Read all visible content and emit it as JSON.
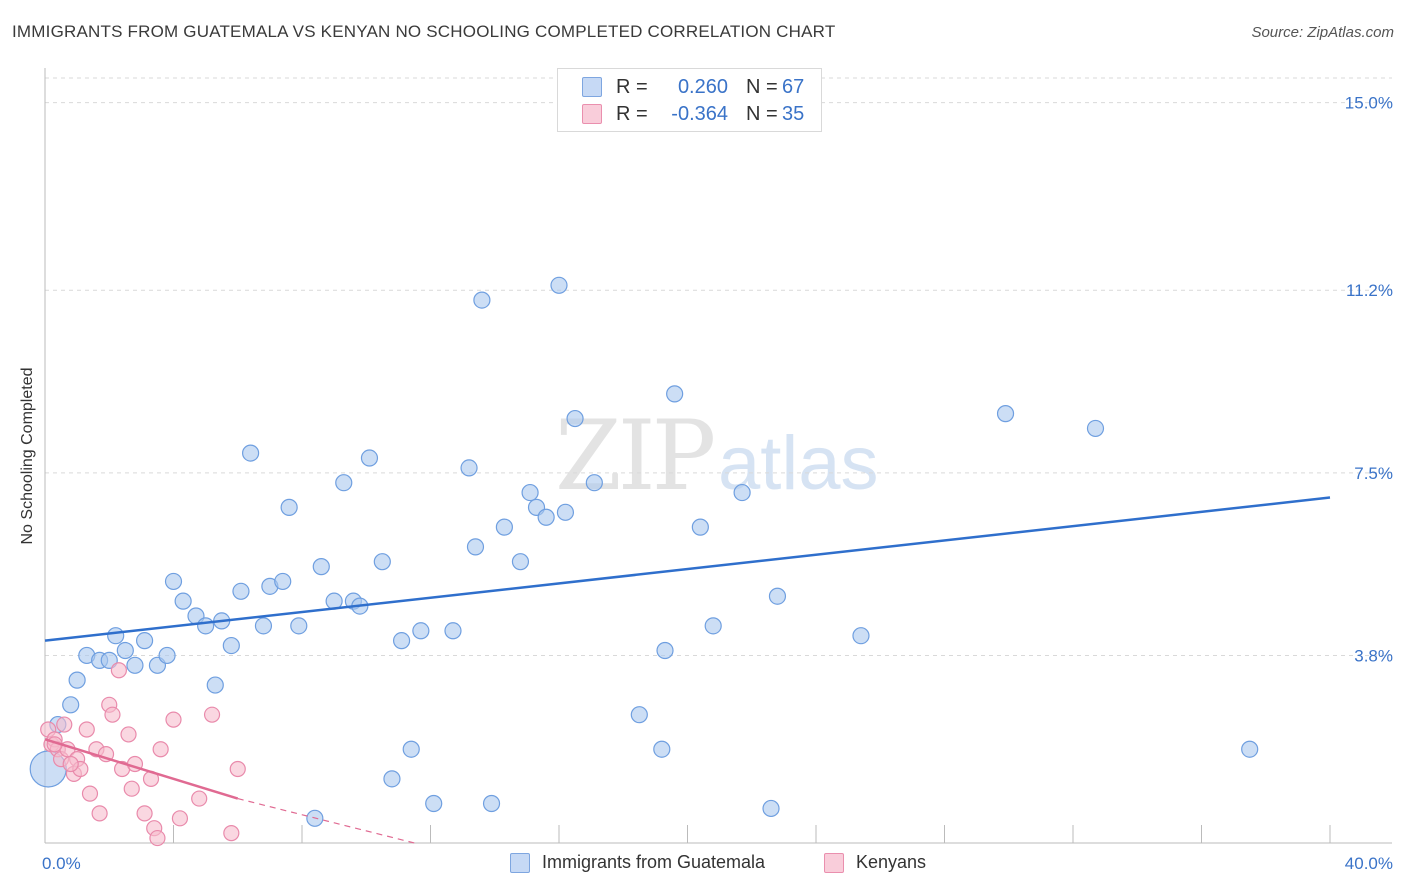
{
  "header": {
    "title": "IMMIGRANTS FROM GUATEMALA VS KENYAN NO SCHOOLING COMPLETED CORRELATION CHART",
    "source": "Source: ZipAtlas.com"
  },
  "watermark": {
    "zip": "ZIP",
    "atlas": "atlas"
  },
  "legend": {
    "r_label": "R =",
    "n_label": "N =",
    "rows": [
      {
        "name": "Immigrants from Guatemala",
        "r": "0.260",
        "n": "67",
        "color": "#7ea6e0"
      },
      {
        "name": "Kenyans",
        "r": "-0.364",
        "n": "35",
        "color": "#ea8fae"
      }
    ]
  },
  "colors": {
    "blue_fill": "#aac8ef",
    "blue_stroke": "#6f9fe0",
    "blue_line": "#2f6fcc",
    "pink_fill": "#f6bccd",
    "pink_stroke": "#e98aab",
    "pink_line": "#e06a92",
    "grid": "#d9d9d9"
  },
  "chart_data": {
    "type": "scatter",
    "title": "IMMIGRANTS FROM GUATEMALA VS KENYAN NO SCHOOLING COMPLETED CORRELATION CHART",
    "xlabel": "",
    "ylabel": "No Schooling Completed",
    "xlim": [
      0,
      40
    ],
    "ylim": [
      0,
      15.5
    ],
    "x_tick_labels": [
      "0.0%",
      "40.0%"
    ],
    "y_ticks": [
      3.8,
      7.5,
      11.2,
      15.0
    ],
    "y_tick_labels": [
      "3.8%",
      "7.5%",
      "11.2%",
      "15.0%"
    ],
    "series": [
      {
        "name": "Immigrants from Guatemala",
        "r": 0.26,
        "n": 67,
        "trend": {
          "x": [
            0,
            40
          ],
          "y": [
            4.1,
            7.0
          ]
        },
        "points": [
          {
            "x": 0.1,
            "y": 1.5,
            "big": true
          },
          {
            "x": 0.4,
            "y": 2.4
          },
          {
            "x": 0.8,
            "y": 2.8
          },
          {
            "x": 1.0,
            "y": 3.3
          },
          {
            "x": 1.3,
            "y": 3.8
          },
          {
            "x": 1.7,
            "y": 3.7
          },
          {
            "x": 2.0,
            "y": 3.7
          },
          {
            "x": 2.2,
            "y": 4.2
          },
          {
            "x": 2.5,
            "y": 3.9
          },
          {
            "x": 2.8,
            "y": 3.6
          },
          {
            "x": 3.1,
            "y": 4.1
          },
          {
            "x": 3.5,
            "y": 3.6
          },
          {
            "x": 3.8,
            "y": 3.8
          },
          {
            "x": 4.0,
            "y": 5.3
          },
          {
            "x": 4.3,
            "y": 4.9
          },
          {
            "x": 4.7,
            "y": 4.6
          },
          {
            "x": 5.0,
            "y": 4.4
          },
          {
            "x": 5.3,
            "y": 3.2
          },
          {
            "x": 5.5,
            "y": 4.5
          },
          {
            "x": 5.8,
            "y": 4.0
          },
          {
            "x": 6.1,
            "y": 5.1
          },
          {
            "x": 6.4,
            "y": 7.9
          },
          {
            "x": 6.8,
            "y": 4.4
          },
          {
            "x": 7.0,
            "y": 5.2
          },
          {
            "x": 7.4,
            "y": 5.3
          },
          {
            "x": 7.6,
            "y": 6.8
          },
          {
            "x": 7.9,
            "y": 4.4
          },
          {
            "x": 8.4,
            "y": 0.5
          },
          {
            "x": 8.6,
            "y": 5.6
          },
          {
            "x": 9.0,
            "y": 4.9
          },
          {
            "x": 9.3,
            "y": 7.3
          },
          {
            "x": 9.6,
            "y": 4.9
          },
          {
            "x": 9.8,
            "y": 4.8
          },
          {
            "x": 10.1,
            "y": 7.8
          },
          {
            "x": 10.5,
            "y": 5.7
          },
          {
            "x": 10.8,
            "y": 1.3
          },
          {
            "x": 11.1,
            "y": 4.1
          },
          {
            "x": 11.4,
            "y": 1.9
          },
          {
            "x": 11.7,
            "y": 4.3
          },
          {
            "x": 12.1,
            "y": 0.8
          },
          {
            "x": 12.7,
            "y": 4.3
          },
          {
            "x": 13.2,
            "y": 7.6
          },
          {
            "x": 13.4,
            "y": 6.0
          },
          {
            "x": 13.6,
            "y": 11.0
          },
          {
            "x": 13.9,
            "y": 0.8
          },
          {
            "x": 14.3,
            "y": 6.4
          },
          {
            "x": 14.8,
            "y": 5.7
          },
          {
            "x": 15.1,
            "y": 7.1
          },
          {
            "x": 15.3,
            "y": 6.8
          },
          {
            "x": 15.6,
            "y": 6.6
          },
          {
            "x": 16.0,
            "y": 11.3
          },
          {
            "x": 16.2,
            "y": 6.7
          },
          {
            "x": 16.5,
            "y": 8.6
          },
          {
            "x": 17.1,
            "y": 7.3
          },
          {
            "x": 18.5,
            "y": 2.6
          },
          {
            "x": 19.2,
            "y": 1.9
          },
          {
            "x": 19.3,
            "y": 3.9
          },
          {
            "x": 19.6,
            "y": 9.1
          },
          {
            "x": 20.4,
            "y": 6.4
          },
          {
            "x": 20.8,
            "y": 4.4
          },
          {
            "x": 21.7,
            "y": 7.1
          },
          {
            "x": 22.6,
            "y": 0.7
          },
          {
            "x": 22.8,
            "y": 5.0
          },
          {
            "x": 25.4,
            "y": 4.2
          },
          {
            "x": 29.9,
            "y": 8.7
          },
          {
            "x": 32.7,
            "y": 8.4
          },
          {
            "x": 37.5,
            "y": 1.9
          }
        ]
      },
      {
        "name": "Kenyans",
        "r": -0.364,
        "n": 35,
        "trend": {
          "x": [
            0,
            6
          ],
          "y": [
            2.1,
            0.9
          ]
        },
        "trend_extension": {
          "x": [
            6,
            11.5
          ],
          "y": [
            0.9,
            0.0
          ]
        },
        "points": [
          {
            "x": 0.1,
            "y": 2.3
          },
          {
            "x": 0.2,
            "y": 2.0
          },
          {
            "x": 0.3,
            "y": 2.1
          },
          {
            "x": 0.4,
            "y": 1.9
          },
          {
            "x": 0.5,
            "y": 1.7
          },
          {
            "x": 0.6,
            "y": 2.4
          },
          {
            "x": 0.7,
            "y": 1.9
          },
          {
            "x": 0.9,
            "y": 1.4
          },
          {
            "x": 1.0,
            "y": 1.7
          },
          {
            "x": 1.1,
            "y": 1.5
          },
          {
            "x": 1.3,
            "y": 2.3
          },
          {
            "x": 1.4,
            "y": 1.0
          },
          {
            "x": 1.6,
            "y": 1.9
          },
          {
            "x": 1.7,
            "y": 0.6
          },
          {
            "x": 1.9,
            "y": 1.8
          },
          {
            "x": 2.0,
            "y": 2.8
          },
          {
            "x": 2.1,
            "y": 2.6
          },
          {
            "x": 2.3,
            "y": 3.5
          },
          {
            "x": 2.4,
            "y": 1.5
          },
          {
            "x": 2.6,
            "y": 2.2
          },
          {
            "x": 2.7,
            "y": 1.1
          },
          {
            "x": 2.8,
            "y": 1.6
          },
          {
            "x": 3.1,
            "y": 0.6
          },
          {
            "x": 3.3,
            "y": 1.3
          },
          {
            "x": 3.4,
            "y": 0.3
          },
          {
            "x": 3.5,
            "y": 0.1
          },
          {
            "x": 3.6,
            "y": 1.9
          },
          {
            "x": 4.0,
            "y": 2.5
          },
          {
            "x": 4.2,
            "y": 0.5
          },
          {
            "x": 4.8,
            "y": 0.9
          },
          {
            "x": 5.2,
            "y": 2.6
          },
          {
            "x": 5.8,
            "y": 0.2
          },
          {
            "x": 6.0,
            "y": 1.5
          },
          {
            "x": 0.3,
            "y": 2.0
          },
          {
            "x": 0.8,
            "y": 1.6
          }
        ]
      }
    ]
  }
}
